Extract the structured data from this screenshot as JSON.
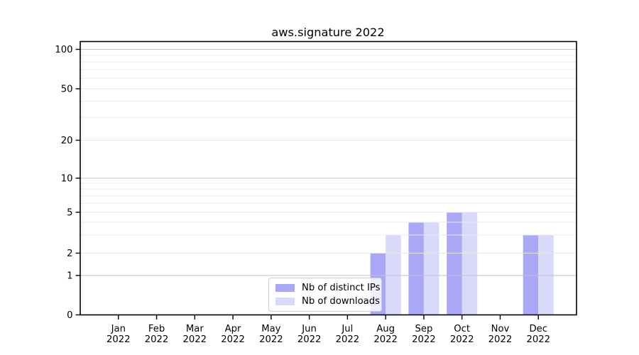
{
  "chart_data": {
    "type": "bar",
    "title": "aws.signature 2022",
    "categories": [
      "Jan 2022",
      "Feb 2022",
      "Mar 2022",
      "Apr 2022",
      "May 2022",
      "Jun 2022",
      "Jul 2022",
      "Aug 2022",
      "Sep 2022",
      "Oct 2022",
      "Nov 2022",
      "Dec 2022"
    ],
    "series": [
      {
        "name": "Nb of distinct IPs",
        "color": "#a8a8f6",
        "values": [
          0,
          0,
          0,
          0,
          0,
          0,
          0,
          2,
          4,
          5,
          0,
          3
        ]
      },
      {
        "name": "Nb of downloads",
        "color": "#d9d9f9",
        "values": [
          0,
          0,
          0,
          0,
          0,
          0,
          0,
          3,
          4,
          5,
          0,
          3
        ]
      }
    ],
    "xlabel": "",
    "ylabel": "",
    "yscale": "symlog",
    "ylim": [
      0,
      113
    ],
    "y_ticks": [
      0,
      1,
      2,
      5,
      10,
      20,
      50,
      100
    ],
    "decade_gridlines": [
      1,
      10,
      100
    ],
    "minor_gridlines": [
      3,
      4,
      6,
      7,
      8,
      9,
      30,
      40,
      60,
      70,
      80,
      90
    ],
    "grid": true,
    "legend_position": "lower center",
    "colors": {
      "frame": "#000000",
      "tick": "#000000",
      "decade_grid": "#c2c2c2",
      "minor_grid": "#ebebeb",
      "labeled_grid": "#e7e7e7",
      "legend_border": "#cccccc"
    }
  }
}
